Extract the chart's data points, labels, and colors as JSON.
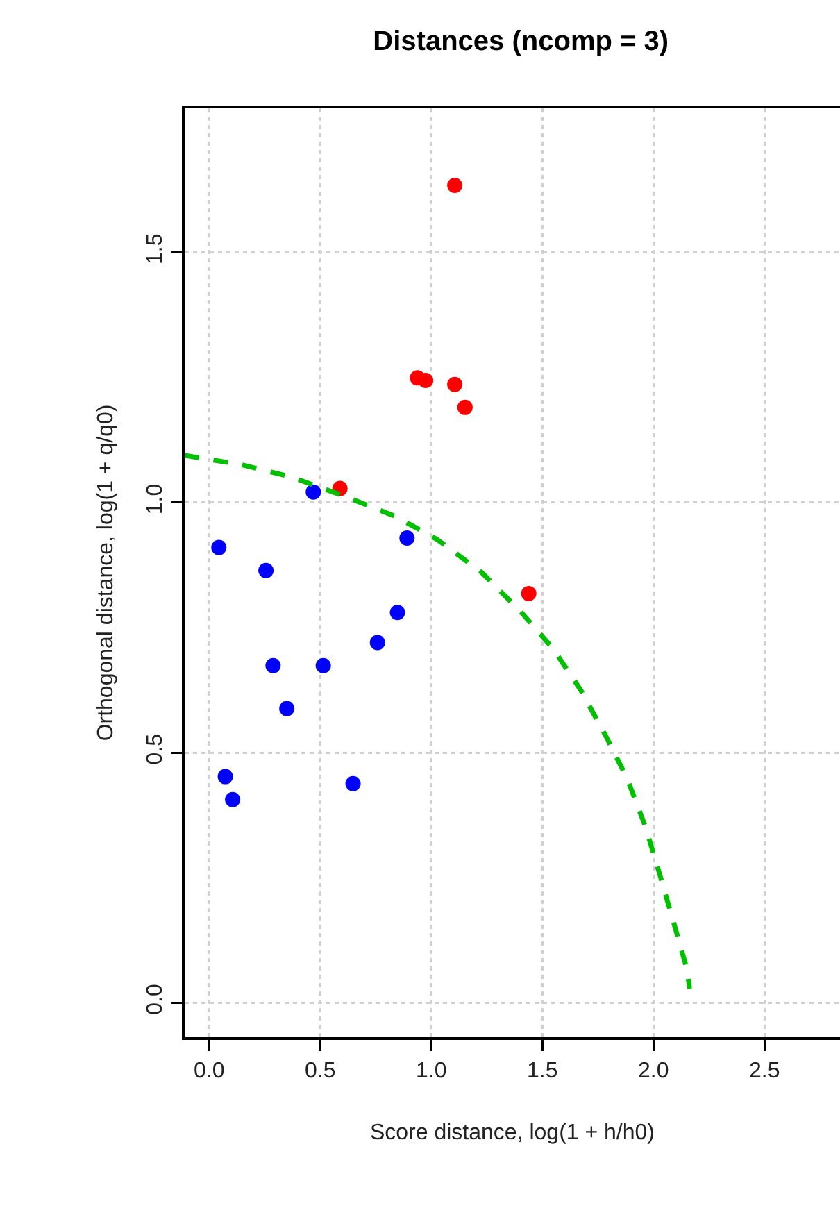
{
  "chart_data": {
    "type": "scatter",
    "title": "Distances (ncomp = 3)",
    "xlabel": "Score distance, log(1 + h/h0)",
    "ylabel": "Orthogonal distance, log(1 + q/q0)",
    "xlim": [
      -0.11,
      2.84
    ],
    "ylim": [
      -0.069,
      1.788
    ],
    "xticks": [
      {
        "value": 0,
        "label": "0.0"
      },
      {
        "value": 0.5,
        "label": "0.5"
      },
      {
        "value": 1,
        "label": "1.0"
      },
      {
        "value": 1.5,
        "label": "1.5"
      },
      {
        "value": 2,
        "label": "2.0"
      },
      {
        "value": 2.5,
        "label": "2.5"
      }
    ],
    "yticks": [
      {
        "value": 0,
        "label": "0.0"
      },
      {
        "value": 0.5,
        "label": "0.5"
      },
      {
        "value": 1,
        "label": "1.0"
      },
      {
        "value": 1.5,
        "label": "1.5"
      }
    ],
    "grid": true,
    "marker": "circle",
    "series": [
      {
        "color": "#0000ff",
        "x": [
          0.469,
          0.891,
          0.044,
          0.256,
          0.848,
          0.758,
          0.288,
          0.514,
          0.35,
          0.073,
          0.106,
          0.648
        ],
        "values": [
          1.021,
          0.929,
          0.91,
          0.864,
          0.78,
          0.72,
          0.674,
          0.674,
          0.588,
          0.452,
          0.406,
          0.438
        ]
      },
      {
        "color": "#ff0000",
        "x": [
          1.106,
          0.938,
          0.975,
          1.106,
          1.152,
          0.589,
          1.439
        ],
        "values": [
          1.634,
          1.249,
          1.244,
          1.236,
          1.19,
          1.028,
          0.818
        ]
      },
      {
        "type": "line",
        "color": "#00c000",
        "marker": "none",
        "line_style": "dashed",
        "x": [
          -0.11,
          0.14,
          0.37,
          0.6,
          0.84,
          1.027,
          1.225,
          1.402,
          1.548,
          1.673,
          1.787,
          1.881,
          1.964,
          2.027,
          2.09,
          2.15,
          2.163
        ],
        "values": [
          1.094,
          1.076,
          1.051,
          1.014,
          0.972,
          0.926,
          0.861,
          0.782,
          0.708,
          0.625,
          0.532,
          0.449,
          0.352,
          0.259,
          0.162,
          0.069,
          0.028
        ]
      }
    ]
  }
}
